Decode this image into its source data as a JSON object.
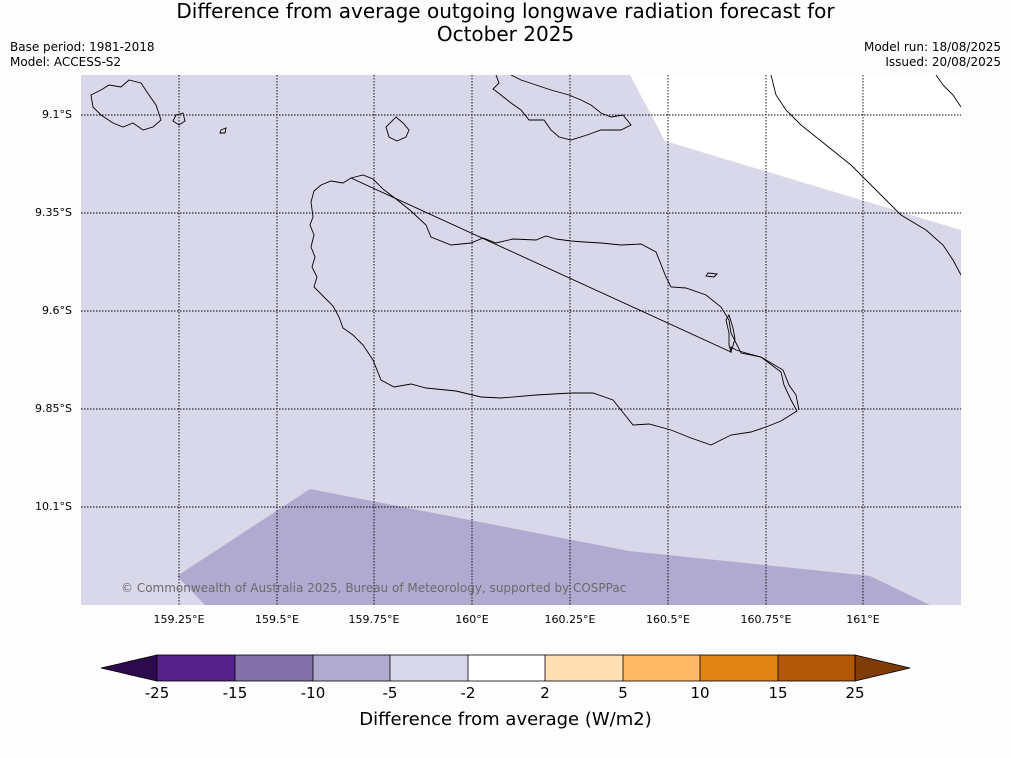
{
  "header": {
    "title_line1": "Difference from average outgoing longwave radiation forecast for",
    "title_line2": "October 2025",
    "base_period": "Base period: 1981-2018",
    "model": "Model: ACCESS-S2",
    "model_run": "Model run: 18/08/2025",
    "issued": "Issued: 20/08/2025"
  },
  "map": {
    "lat_labels": [
      "9.1°S",
      "9.35°S",
      "9.6°S",
      "9.85°S",
      "10.1°S"
    ],
    "lon_labels": [
      "159.25°E",
      "159.5°E",
      "159.75°E",
      "160°E",
      "160.25°E",
      "160.5°E",
      "160.75°E",
      "161°E"
    ],
    "copyright": "© Commonwealth of Australia 2025, Bureau of Meteorology, supported by COSPPac",
    "colors": {
      "ocean_fill": "#d8d8ea",
      "category_minus5_minus10": "#b0aad0",
      "category_plus2_minus2": "#ffffff"
    }
  },
  "colorbar": {
    "title": "Difference from average (W/m2)",
    "tick_labels": [
      "-25",
      "-15",
      "-10",
      "-5",
      "-2",
      "2",
      "5",
      "10",
      "15",
      "25"
    ],
    "colors": [
      "#2d0a4e",
      "#55218a",
      "#8173aa",
      "#b0aad0",
      "#d8d8ea",
      "#ffffff",
      "#ffe0b5",
      "#fdb863",
      "#e08214",
      "#b35806",
      "#7f3b08"
    ]
  }
}
